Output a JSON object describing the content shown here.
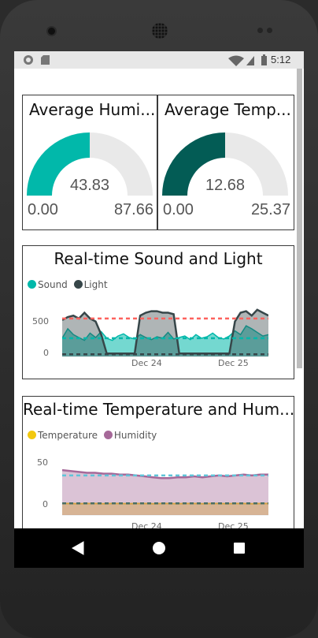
{
  "status_bar": {
    "time": "5:12",
    "icons": [
      "circle-notification-icon",
      "sd-card-icon",
      "wifi-icon",
      "cell-signal-icon",
      "battery-icon"
    ]
  },
  "kpi_humidity": {
    "title": "Average Humi...",
    "value": "43.83",
    "min": "0.00",
    "max": "87.66",
    "fraction": 0.5,
    "color": "#01b8aa"
  },
  "kpi_temperature": {
    "title": "Average Temp...",
    "value": "12.68",
    "min": "0.00",
    "max": "25.37",
    "fraction": 0.5,
    "color": "#035c55"
  },
  "sound_light": {
    "title": "Real-time Sound and Light",
    "legend": [
      {
        "name": "Sound",
        "color": "#01b8aa"
      },
      {
        "name": "Light",
        "color": "#374649"
      }
    ],
    "yticks": [
      "500",
      "0"
    ],
    "xticks": [
      "Dec 24",
      "Dec 25"
    ],
    "chart_data": {
      "type": "area",
      "series": [
        {
          "name": "Sound",
          "color": "#01b8aa",
          "values": [
            250,
            380,
            300,
            260,
            220,
            320,
            260,
            340,
            250,
            220,
            280,
            310,
            260,
            240,
            300,
            260,
            230,
            270,
            250,
            330,
            240,
            260,
            280,
            230,
            300,
            250,
            270,
            320,
            260,
            240,
            280,
            350,
            300,
            420,
            380,
            330,
            280,
            300
          ]
        },
        {
          "name": "Light",
          "color": "#374649",
          "values": [
            500,
            540,
            560,
            520,
            600,
            520,
            480,
            300,
            40,
            40,
            40,
            40,
            40,
            40,
            560,
            600,
            620,
            620,
            600,
            600,
            580,
            40,
            40,
            40,
            40,
            40,
            40,
            40,
            40,
            40,
            40,
            480,
            600,
            620,
            560,
            640,
            600,
            560
          ]
        }
      ],
      "reference_lines": [
        {
          "value": 520,
          "color": "#fd625e"
        },
        {
          "value": 250,
          "color": "#01b8aa"
        },
        {
          "value": 30,
          "color": "#374649"
        }
      ],
      "ylim": [
        0,
        800
      ]
    }
  },
  "temp_humidity": {
    "title": "Real-time Temperature and Hum...",
    "legend": [
      {
        "name": "Temperature",
        "color": "#f2c80f"
      },
      {
        "name": "Humidity",
        "color": "#a66999"
      }
    ],
    "yticks": [
      "50",
      "0"
    ],
    "xticks": [
      "Dec 24",
      "Dec 25"
    ],
    "chart_data": {
      "type": "area",
      "series": [
        {
          "name": "Temperature",
          "color": "#f2c80f",
          "values": [
            12.7,
            12.7,
            12.6,
            12.7,
            12.7,
            12.6,
            12.7,
            12.7,
            12.6,
            12.7,
            12.7,
            12.6,
            12.7,
            12.7,
            12.6,
            12.7,
            12.7,
            12.6,
            12.7,
            12.7,
            12.6,
            12.7,
            12.7,
            12.6,
            12.7,
            12.7
          ]
        },
        {
          "name": "Humidity",
          "color": "#a66999",
          "values": [
            50,
            49,
            48,
            47,
            47,
            46,
            46,
            45,
            45,
            44,
            43,
            42,
            41,
            41,
            42,
            42,
            43,
            42,
            43,
            44,
            43,
            44,
            45,
            44,
            45,
            45
          ]
        }
      ],
      "reference_lines": [
        {
          "value": 44,
          "color": "#5fc4d9"
        },
        {
          "value": 13,
          "color": "#4a6e63"
        }
      ],
      "ylim": [
        0,
        65
      ]
    }
  }
}
